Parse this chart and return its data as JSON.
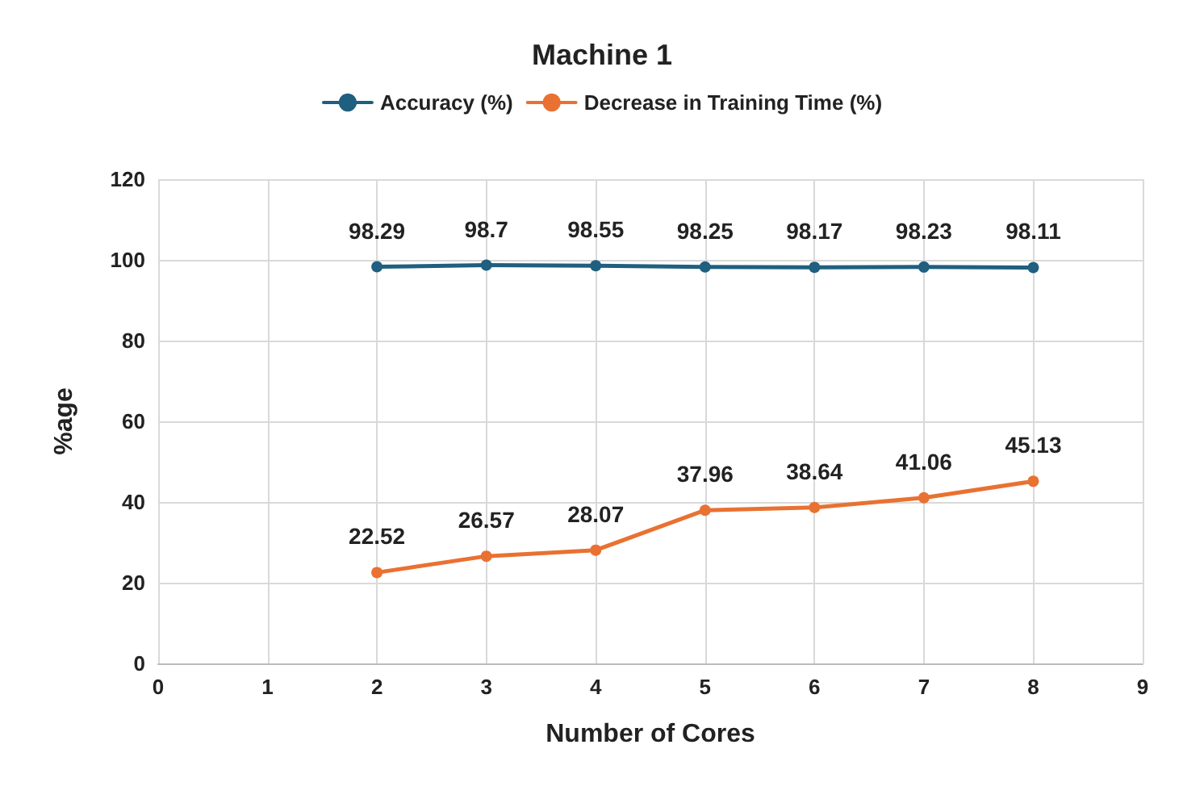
{
  "chart_data": {
    "type": "line",
    "title": "Machine 1",
    "xlabel": "Number of Cores",
    "ylabel": "%age",
    "x": [
      2,
      3,
      4,
      5,
      6,
      7,
      8
    ],
    "series": [
      {
        "name": "Accuracy (%)",
        "color": "#1f5f7f",
        "values": [
          98.29,
          98.7,
          98.55,
          98.25,
          98.17,
          98.23,
          98.11
        ]
      },
      {
        "name": "Decrease in Training Time (%)",
        "color": "#e97132",
        "values": [
          22.52,
          26.57,
          28.07,
          37.96,
          38.64,
          41.06,
          45.13
        ]
      }
    ],
    "xlim": [
      0,
      9
    ],
    "xticks": [
      0,
      1,
      2,
      3,
      4,
      5,
      6,
      7,
      8,
      9
    ],
    "ylim": [
      0,
      120
    ],
    "yticks": [
      0,
      20,
      40,
      60,
      80,
      100,
      120
    ],
    "grid": true,
    "legend": "top",
    "marker": "circle",
    "line_style": "solid",
    "data_labels": true
  }
}
